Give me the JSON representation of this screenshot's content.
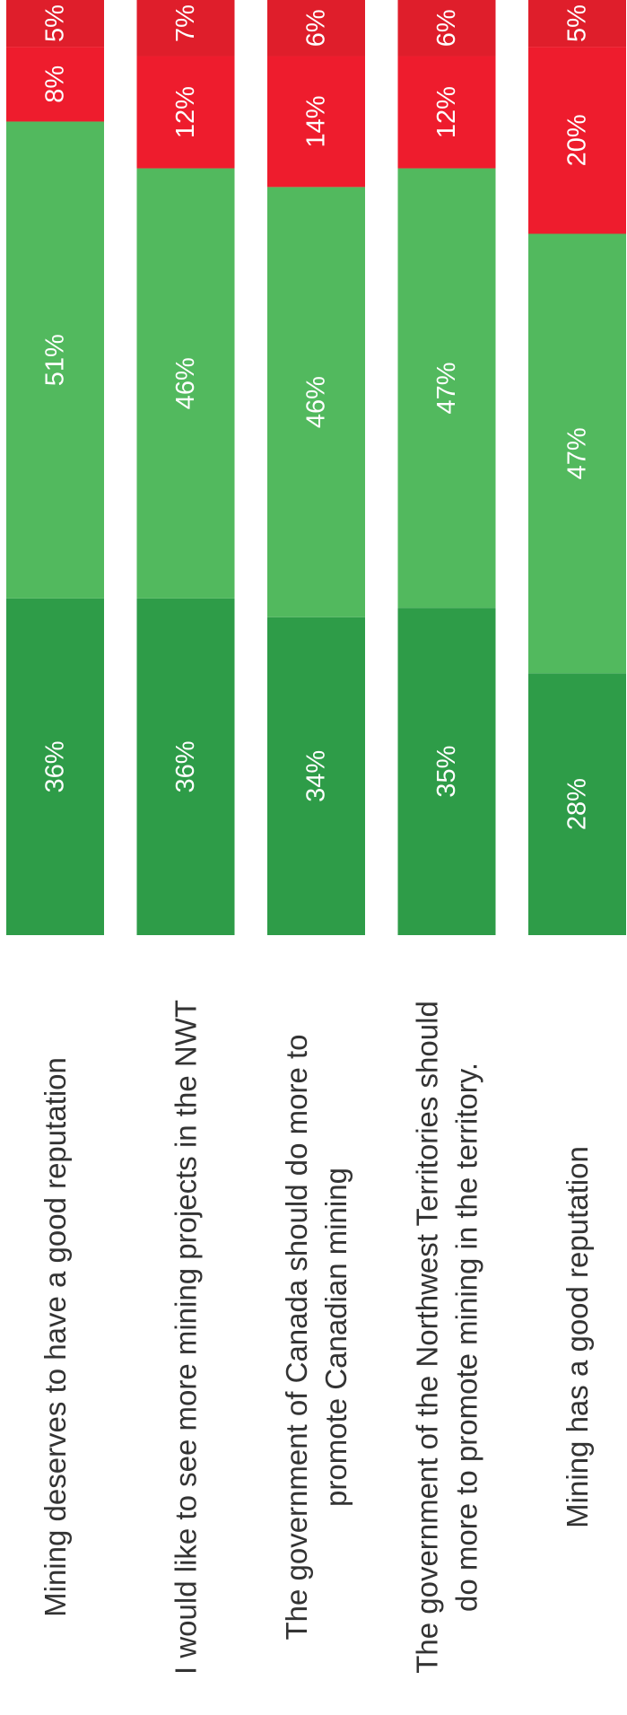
{
  "chart_data": {
    "type": "bar",
    "orientation": "stacked-horizontal-rotated",
    "categories": [
      "Mining deserves to have a good reputation",
      "I would like to see more mining projects in the NWT",
      "The government of Canada should do more to promote Canadian mining",
      "The government of the Northwest Territories should do more to promote mining in the territory.",
      "Mining has a good reputation"
    ],
    "category_lines": [
      [
        "Mining deserves to have a good reputation"
      ],
      [
        "I would like to see more mining projects in the NWT"
      ],
      [
        "The government of Canada should do more to",
        "promote Canadian mining"
      ],
      [
        "The government of the Northwest Territories should",
        "do more to promote mining in the territory."
      ],
      [
        "Mining has a good reputation"
      ]
    ],
    "series": [
      {
        "color": "#2e9c48",
        "values": [
          36,
          36,
          34,
          35,
          28
        ]
      },
      {
        "color": "#52b95e",
        "values": [
          51,
          46,
          46,
          47,
          47
        ]
      },
      {
        "color": "#ee1c2d",
        "values": [
          8,
          12,
          14,
          12,
          20
        ]
      },
      {
        "color": "#df1e2b",
        "values": [
          5,
          7,
          6,
          6,
          5
        ]
      }
    ],
    "data_label_suffix": "%",
    "xlim": [
      0,
      100
    ],
    "legend": "none",
    "grid": false
  }
}
